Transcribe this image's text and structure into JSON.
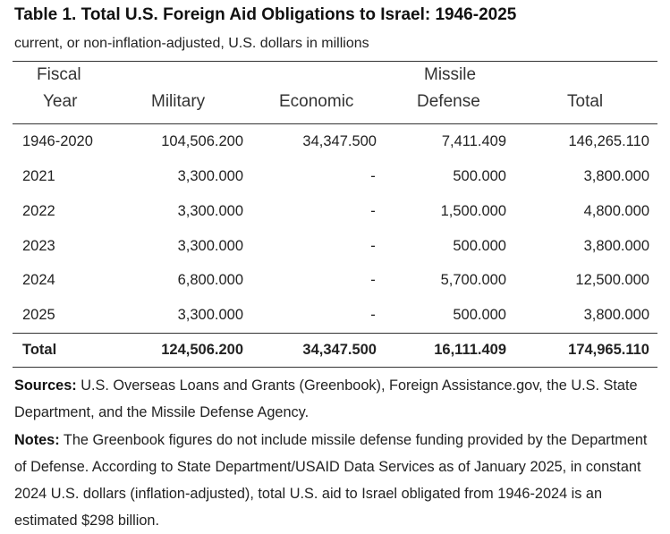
{
  "title": "Table 1. Total U.S. Foreign Aid Obligations to Israel: 1946-2025",
  "subtitle": "current, or non-inflation-adjusted, U.S. dollars in millions",
  "headers": {
    "fiscal_line1": "Fiscal",
    "fiscal_line2": "Year",
    "military": "Military",
    "economic": "Economic",
    "missile_line1": "Missile",
    "missile_line2": "Defense",
    "total": "Total"
  },
  "rows": [
    {
      "year": "1946-2020",
      "military": "104,506.200",
      "economic": "34,347.500",
      "missile": "7,411.409",
      "total": "146,265.110"
    },
    {
      "year": "2021",
      "military": "3,300.000",
      "economic": "-",
      "missile": "500.000",
      "total": "3,800.000"
    },
    {
      "year": "2022",
      "military": "3,300.000",
      "economic": "-",
      "missile": "1,500.000",
      "total": "4,800.000"
    },
    {
      "year": "2023",
      "military": "3,300.000",
      "economic": "-",
      "missile": "500.000",
      "total": "3,800.000"
    },
    {
      "year": "2024",
      "military": "6,800.000",
      "economic": "-",
      "missile": "5,700.000",
      "total": "12,500.000"
    },
    {
      "year": "2025",
      "military": "3,300.000",
      "economic": "-",
      "missile": "500.000",
      "total": "3,800.000"
    }
  ],
  "totals": {
    "label": "Total",
    "military": "124,506.200",
    "economic": "34,347.500",
    "missile": "16,111.409",
    "total": "174,965.110"
  },
  "sources": {
    "label": "Sources:",
    "text": "U.S. Overseas Loans and Grants (Greenbook), Foreign Assistance.gov, the U.S. State Department, and the Missile Defense Agency."
  },
  "notes": {
    "label": "Notes:",
    "text": "The Greenbook figures do not include missile defense funding provided by the Department of Defense. According to State Department/USAID Data Services as of January 2025, in constant 2024 U.S. dollars (inflation-adjusted), total U.S. aid to Israel obligated from 1946-2024 is an estimated $298 billion."
  }
}
